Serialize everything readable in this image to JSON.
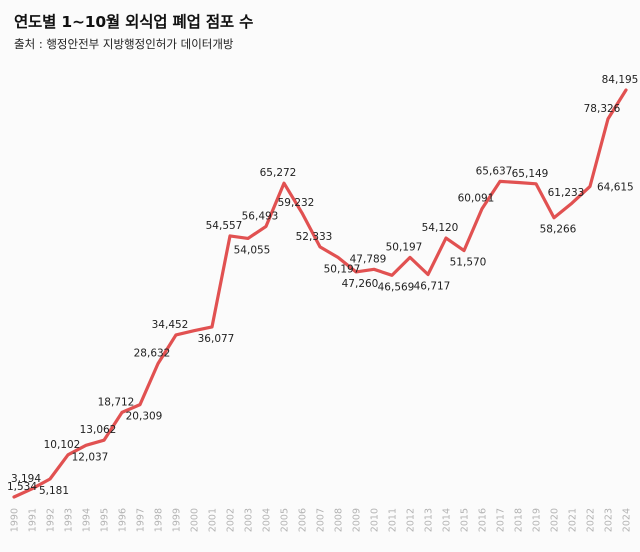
{
  "header": {
    "title": "연도별 1~10월 외식업 폐업 점포 수",
    "subtitle": "출처 : 행정안전부 지방행정인허가 데이터개방"
  },
  "chart_data": {
    "type": "line",
    "title": "연도별 1~10월 외식업 폐업 점포 수",
    "subtitle": "출처 : 행정안전부 지방행정인허가 데이터개방",
    "x": [
      1990,
      1991,
      1992,
      1993,
      1994,
      1995,
      1996,
      1997,
      1998,
      1999,
      2000,
      2001,
      2002,
      2003,
      2004,
      2005,
      2006,
      2007,
      2008,
      2009,
      2010,
      2011,
      2012,
      2013,
      2014,
      2015,
      2016,
      2017,
      2018,
      2019,
      2020,
      2021,
      2022,
      2023,
      2024
    ],
    "values": [
      1534,
      3194,
      5181,
      10102,
      12037,
      13062,
      18712,
      20309,
      28632,
      34452,
      35300,
      36077,
      54557,
      54055,
      56493,
      65272,
      59232,
      52333,
      50197,
      47260,
      47789,
      46569,
      50197,
      46717,
      54120,
      51570,
      60091,
      65637,
      65400,
      65149,
      58266,
      61233,
      64615,
      78326,
      84195
    ],
    "labels": [
      "1,534",
      "3,194",
      "5,181",
      "10,102",
      "12,037",
      "13,062",
      "18,712",
      "20,309",
      "28,632",
      "34,452",
      null,
      "36,077",
      "54,557",
      "54,055",
      "56,493",
      "65,272",
      "59,232",
      "52,333",
      "50,197",
      "47,260",
      "47,789",
      "46,569",
      "50,197",
      "46,717",
      "54,120",
      "51,570",
      "60,091",
      "65,637",
      null,
      "65,149",
      "58,266",
      "61,233",
      "64,615",
      "78,326",
      "84,195"
    ],
    "label_positions": [
      "above",
      "above",
      "below",
      "above",
      "below",
      "above",
      "above",
      "below",
      "above",
      "above",
      null,
      "below",
      "above",
      "below",
      "above",
      "above",
      "above",
      "above",
      "below",
      "below",
      "above",
      "below",
      "above",
      "below",
      "above",
      "below",
      "above",
      "above",
      null,
      "above",
      "below",
      "above",
      "right",
      "above",
      "above"
    ],
    "xlabel": "",
    "ylabel": "",
    "ylim": [
      0,
      90000
    ],
    "grid": false,
    "legend": false,
    "line_color": "#e15151",
    "data_label_color": "#222222",
    "axis_label_color": "#b3b3b3"
  }
}
